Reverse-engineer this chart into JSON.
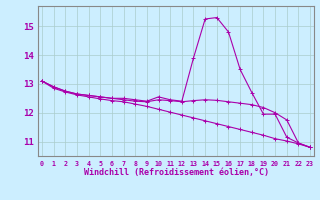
{
  "xlabel": "Windchill (Refroidissement éolien,°C)",
  "x": [
    0,
    1,
    2,
    3,
    4,
    5,
    6,
    7,
    8,
    9,
    10,
    11,
    12,
    13,
    14,
    15,
    16,
    17,
    18,
    19,
    20,
    21,
    22,
    23
  ],
  "line1": [
    13.1,
    12.9,
    12.75,
    12.65,
    12.6,
    12.55,
    12.5,
    12.5,
    12.45,
    12.4,
    12.55,
    12.45,
    12.4,
    13.9,
    15.25,
    15.3,
    14.8,
    13.5,
    12.7,
    11.95,
    11.95,
    11.15,
    10.95,
    10.8
  ],
  "line2": [
    13.1,
    12.9,
    12.75,
    12.65,
    12.6,
    12.55,
    12.5,
    12.45,
    12.4,
    12.38,
    12.45,
    12.42,
    12.38,
    12.42,
    12.45,
    12.43,
    12.38,
    12.33,
    12.28,
    12.18,
    12.0,
    11.75,
    10.95,
    10.8
  ],
  "line3": [
    13.1,
    12.85,
    12.72,
    12.62,
    12.55,
    12.48,
    12.42,
    12.38,
    12.3,
    12.22,
    12.12,
    12.02,
    11.92,
    11.82,
    11.72,
    11.62,
    11.52,
    11.42,
    11.32,
    11.22,
    11.1,
    11.02,
    10.92,
    10.8
  ],
  "line_color": "#aa00aa",
  "bg_color": "#cceeff",
  "grid_color": "#aacccc",
  "ylim": [
    10.5,
    15.7
  ],
  "yticks": [
    11,
    12,
    13,
    14,
    15
  ],
  "xticks": [
    0,
    1,
    2,
    3,
    4,
    5,
    6,
    7,
    8,
    9,
    10,
    11,
    12,
    13,
    14,
    15,
    16,
    17,
    18,
    19,
    20,
    21,
    22,
    23
  ]
}
